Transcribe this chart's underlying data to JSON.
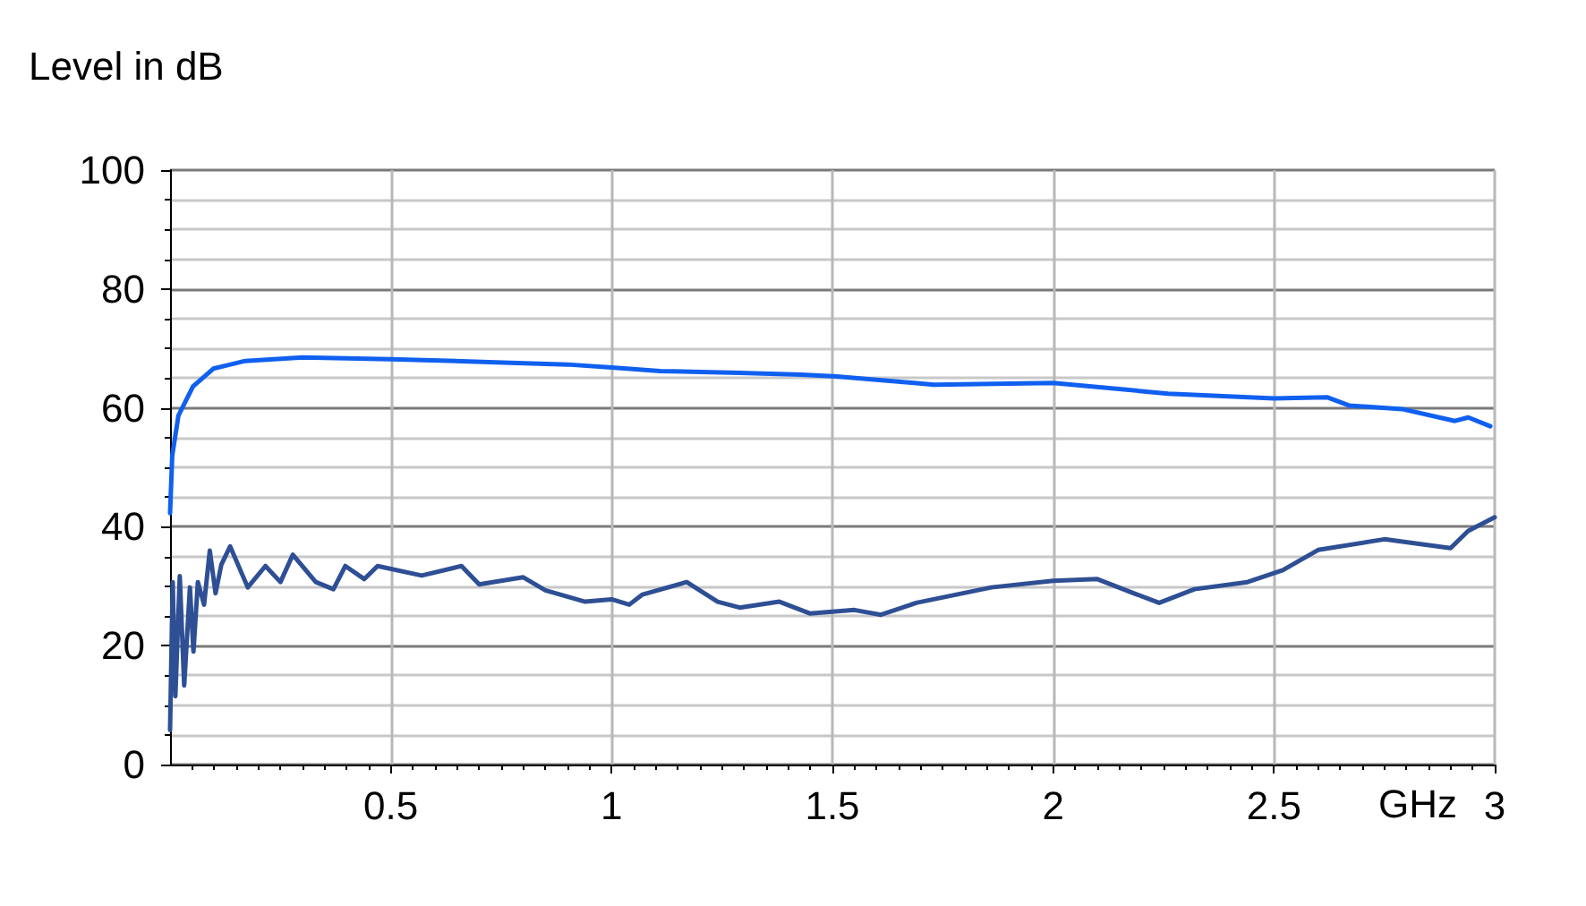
{
  "chart_data": {
    "type": "line",
    "ylabel": "Level in dB",
    "xlabel": "GHz",
    "xlim": [
      0,
      3
    ],
    "xticks": [
      0.5,
      1,
      1.5,
      2,
      2.5,
      3
    ],
    "ylim": [
      0,
      100
    ],
    "yticks": [
      0,
      20,
      40,
      60,
      80,
      100
    ],
    "grid": true,
    "marker": "none",
    "line_style": "solid",
    "series": [
      {
        "color": "#1060f0",
        "x": [
          0.0,
          0.005,
          0.019,
          0.052,
          0.098,
          0.17,
          0.3,
          0.5,
          0.77,
          0.9,
          1.0,
          1.11,
          1.29,
          1.43,
          1.51,
          1.73,
          2.0,
          2.26,
          2.5,
          2.62,
          2.67,
          2.79,
          2.91,
          2.94,
          2.99
        ],
        "values": [
          42.3,
          52,
          58.7,
          63.6,
          66.6,
          67.9,
          68.5,
          68.2,
          67.6,
          67.3,
          66.8,
          66.2,
          65.9,
          65.6,
          65.3,
          63.9,
          64.2,
          62.4,
          61.6,
          61.8,
          60.4,
          59.8,
          57.8,
          58.4,
          56.9
        ]
      },
      {
        "color": "#2e4f94",
        "x": [
          0.0,
          0.006,
          0.012,
          0.022,
          0.032,
          0.045,
          0.053,
          0.063,
          0.077,
          0.09,
          0.103,
          0.116,
          0.136,
          0.176,
          0.216,
          0.25,
          0.278,
          0.33,
          0.37,
          0.397,
          0.44,
          0.47,
          0.57,
          0.66,
          0.7,
          0.8,
          0.85,
          0.94,
          1.0,
          1.04,
          1.07,
          1.17,
          1.24,
          1.29,
          1.38,
          1.45,
          1.55,
          1.61,
          1.69,
          1.86,
          2.0,
          2.1,
          2.19,
          2.24,
          2.32,
          2.44,
          2.52,
          2.6,
          2.75,
          2.9,
          2.94,
          3.0
        ],
        "values": [
          5.8,
          30.7,
          11.5,
          31.7,
          13.3,
          29.8,
          19,
          30.7,
          26.9,
          36,
          28.8,
          33.6,
          36.7,
          29.8,
          33.4,
          30.7,
          35.3,
          30.7,
          29.5,
          33.4,
          31.2,
          33.4,
          31.8,
          33.4,
          30.3,
          31.5,
          29.3,
          27.4,
          27.8,
          26.9,
          28.6,
          30.7,
          27.4,
          26.4,
          27.4,
          25.4,
          26,
          25.2,
          27.2,
          29.8,
          30.9,
          31.2,
          28.6,
          27.2,
          29.5,
          30.7,
          32.7,
          36.1,
          37.9,
          36.4,
          39.3,
          41.6
        ]
      }
    ]
  }
}
